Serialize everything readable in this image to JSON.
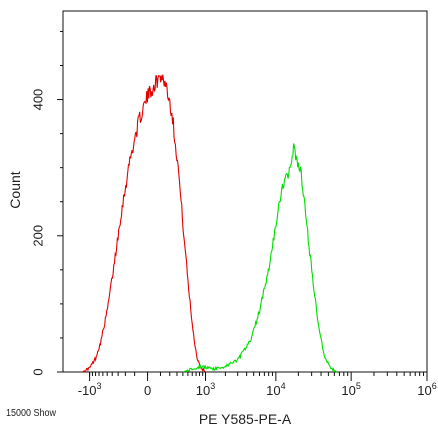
{
  "footer": {
    "left_label": "15000 Show"
  },
  "chart_data": {
    "type": "histogram",
    "xlabel": "PE Y585-PE-A",
    "ylabel": "Count",
    "x_scale": "biexponential",
    "xlim": [
      -2500,
      1000000
    ],
    "ylim": [
      0,
      530
    ],
    "x_tick_labels": [
      {
        "value": -1000,
        "label": "-10",
        "exp": "3"
      },
      {
        "value": 0,
        "label": "0",
        "exp": ""
      },
      {
        "value": 1000,
        "label": "10",
        "exp": "3"
      },
      {
        "value": 10000,
        "label": "10",
        "exp": "4"
      },
      {
        "value": 100000,
        "label": "10",
        "exp": "5"
      },
      {
        "value": 1000000,
        "label": "10",
        "exp": "6"
      }
    ],
    "y_ticks": [
      {
        "value": 0,
        "label": "0"
      },
      {
        "value": 200,
        "label": "200"
      },
      {
        "value": 400,
        "label": "400"
      }
    ],
    "grid": false,
    "series": [
      {
        "color": "#e00000",
        "points": [
          [
            -1300,
            0
          ],
          [
            -1000,
            6
          ],
          [
            -800,
            20
          ],
          [
            -650,
            45
          ],
          [
            -500,
            90
          ],
          [
            -380,
            150
          ],
          [
            -260,
            230
          ],
          [
            -150,
            310
          ],
          [
            -60,
            370
          ],
          [
            0,
            405
          ],
          [
            60,
            425
          ],
          [
            110,
            436
          ],
          [
            160,
            420
          ],
          [
            230,
            380
          ],
          [
            320,
            300
          ],
          [
            420,
            200
          ],
          [
            520,
            120
          ],
          [
            620,
            60
          ],
          [
            720,
            22
          ],
          [
            850,
            6
          ],
          [
            1000,
            0
          ]
        ]
      },
      {
        "color": "#00dd00",
        "points": [
          [
            400,
            0
          ],
          [
            600,
            5
          ],
          [
            900,
            8
          ],
          [
            1300,
            4
          ],
          [
            2000,
            8
          ],
          [
            3000,
            18
          ],
          [
            4500,
            45
          ],
          [
            6000,
            90
          ],
          [
            8000,
            150
          ],
          [
            10000,
            215
          ],
          [
            12000,
            265
          ],
          [
            14000,
            290
          ],
          [
            16000,
            300
          ],
          [
            17500,
            333
          ],
          [
            19000,
            305
          ],
          [
            21000,
            300
          ],
          [
            24000,
            250
          ],
          [
            28000,
            180
          ],
          [
            33000,
            110
          ],
          [
            38000,
            60
          ],
          [
            45000,
            20
          ],
          [
            55000,
            5
          ],
          [
            65000,
            0
          ]
        ]
      }
    ]
  }
}
